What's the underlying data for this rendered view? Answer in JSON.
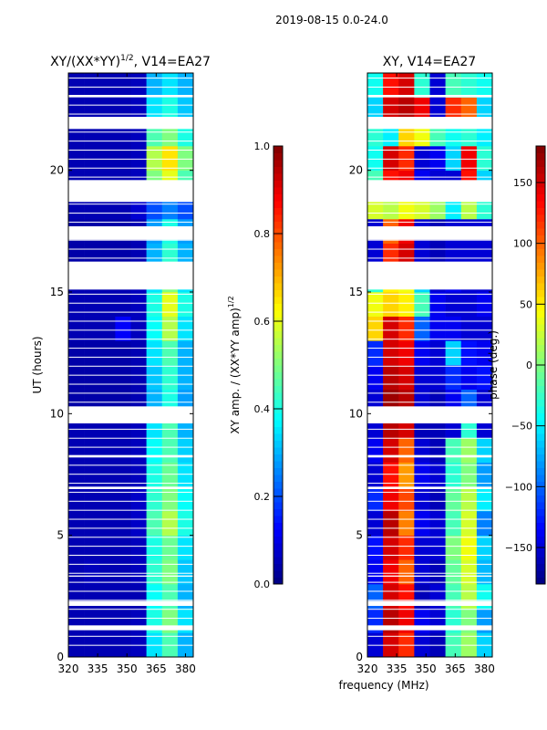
{
  "suptitle": "2019-08-15 0.0-24.0",
  "xlabel": "frequency (MHz)",
  "chart_data": [
    {
      "type": "heatmap",
      "title": "XY/(XX*YY)",
      "title_sup": "1/2",
      "title_suffix": ", V14=EA27",
      "ylabel": "UT (hours)",
      "xlim": [
        320,
        384
      ],
      "ylim": [
        0,
        24
      ],
      "xticks": [
        320,
        335,
        350,
        365,
        380
      ],
      "yticks": [
        0,
        5,
        10,
        15,
        20
      ],
      "freq_bins": [
        320,
        328,
        336,
        344,
        352,
        360,
        368,
        376,
        384
      ],
      "gaps_hours": [
        [
          1.1,
          1.3
        ],
        [
          2.1,
          2.3
        ],
        [
          3.3,
          3.35
        ],
        [
          6.9,
          7.0
        ],
        [
          8.2,
          8.3
        ],
        [
          9.6,
          10.3
        ],
        [
          15.1,
          16.25
        ],
        [
          17.15,
          17.7
        ],
        [
          18.7,
          19.6
        ],
        [
          21.7,
          22.2
        ],
        [
          23.0,
          23.1
        ]
      ],
      "values": [
        [
          0.05,
          0.05,
          0.05,
          0.05,
          0.06,
          0.35,
          0.45,
          0.3
        ],
        [
          0.05,
          0.05,
          0.05,
          0.05,
          0.06,
          0.4,
          0.5,
          0.35
        ],
        [
          0.05,
          0.05,
          0.05,
          0.05,
          0.05,
          0.38,
          0.45,
          0.3
        ],
        [
          0.05,
          0.06,
          0.05,
          0.05,
          0.06,
          0.42,
          0.5,
          0.32
        ],
        [
          0.05,
          0.05,
          0.05,
          0.05,
          0.06,
          0.4,
          0.48,
          0.35
        ],
        [
          0.05,
          0.05,
          0.05,
          0.05,
          0.07,
          0.45,
          0.55,
          0.4
        ],
        [
          0.05,
          0.05,
          0.05,
          0.05,
          0.07,
          0.42,
          0.5,
          0.38
        ],
        [
          0.05,
          0.05,
          0.05,
          0.05,
          0.06,
          0.4,
          0.48,
          0.35
        ],
        [
          0.05,
          0.05,
          0.05,
          0.05,
          0.06,
          0.38,
          0.45,
          0.33
        ],
        [
          0.05,
          0.05,
          0.05,
          0.05,
          0.06,
          0.35,
          0.45,
          0.3
        ],
        [
          0.04,
          0.04,
          0.04,
          0.04,
          0.05,
          0.3,
          0.4,
          0.28
        ],
        [
          0.04,
          0.04,
          0.04,
          0.04,
          0.05,
          0.32,
          0.42,
          0.3
        ],
        [
          0.04,
          0.04,
          0.04,
          0.04,
          0.05,
          0.35,
          0.45,
          0.3
        ],
        [
          0.05,
          0.05,
          0.05,
          0.12,
          0.06,
          0.38,
          0.55,
          0.35
        ],
        [
          0.05,
          0.05,
          0.05,
          0.05,
          0.06,
          0.4,
          0.6,
          0.4
        ],
        [
          0.05,
          0.05,
          0.05,
          0.05,
          0.06,
          0.35,
          0.5,
          0.35
        ],
        [
          0.04,
          0.04,
          0.04,
          0.04,
          0.05,
          0.3,
          0.42,
          0.3
        ],
        [
          0.04,
          0.04,
          0.04,
          0.04,
          0.05,
          0.28,
          0.4,
          0.28
        ],
        [
          0.05,
          0.05,
          0.05,
          0.05,
          0.08,
          0.2,
          0.25,
          0.2
        ],
        [
          0.05,
          0.05,
          0.05,
          0.05,
          0.06,
          0.5,
          0.6,
          0.45
        ],
        [
          0.05,
          0.05,
          0.05,
          0.05,
          0.06,
          0.55,
          0.65,
          0.5
        ],
        [
          0.05,
          0.05,
          0.05,
          0.05,
          0.06,
          0.45,
          0.5,
          0.4
        ],
        [
          0.05,
          0.05,
          0.05,
          0.05,
          0.06,
          0.35,
          0.4,
          0.32
        ],
        [
          0.05,
          0.05,
          0.05,
          0.05,
          0.06,
          0.3,
          0.35,
          0.3
        ]
      ],
      "colorbar": {
        "label": "XY amp. / (XX*YY amp)",
        "label_sup": "1/2",
        "range": [
          0,
          1
        ],
        "ticks": [
          "0.0",
          "0.2",
          "0.4",
          "0.6",
          "0.8",
          "1.0"
        ]
      }
    },
    {
      "type": "heatmap",
      "title": "XY, V14=EA27",
      "xlim": [
        320,
        384
      ],
      "ylim": [
        0,
        24
      ],
      "xticks": [
        320,
        335,
        350,
        365,
        380
      ],
      "yticks": [
        0,
        5,
        10,
        15,
        20
      ],
      "freq_bins": [
        320,
        328,
        336,
        344,
        352,
        360,
        368,
        376,
        384
      ],
      "gaps_hours": [
        [
          1.1,
          1.3
        ],
        [
          2.1,
          2.3
        ],
        [
          3.3,
          3.35
        ],
        [
          6.9,
          7.0
        ],
        [
          8.2,
          8.3
        ],
        [
          9.6,
          10.3
        ],
        [
          15.1,
          16.25
        ],
        [
          17.15,
          17.7
        ],
        [
          18.7,
          19.6
        ],
        [
          21.7,
          22.2
        ],
        [
          23.0,
          23.1
        ]
      ],
      "values": [
        [
          -150,
          150,
          120,
          -150,
          -160,
          -20,
          10,
          -60
        ],
        [
          -120,
          160,
          140,
          -140,
          -150,
          -30,
          0,
          -80
        ],
        [
          -100,
          150,
          130,
          -160,
          -150,
          -20,
          20,
          -40
        ],
        [
          -140,
          140,
          100,
          -150,
          -160,
          -10,
          30,
          -70
        ],
        [
          -130,
          150,
          120,
          -150,
          -150,
          0,
          40,
          -60
        ],
        [
          -150,
          160,
          90,
          -140,
          -150,
          -20,
          30,
          -90
        ],
        [
          -120,
          140,
          110,
          -150,
          -160,
          -10,
          20,
          -50
        ],
        [
          -150,
          130,
          80,
          -140,
          -150,
          -30,
          0,
          -80
        ],
        [
          -140,
          150,
          100,
          -150,
          -160,
          -20,
          10,
          -60
        ],
        [
          -150,
          160,
          150,
          -160,
          -160,
          -150,
          -30,
          -150
        ],
        [
          -150,
          170,
          160,
          -150,
          -160,
          -140,
          -100,
          -150
        ],
        [
          -140,
          160,
          150,
          -150,
          -150,
          -120,
          -140,
          -130
        ],
        [
          -120,
          150,
          140,
          -140,
          -150,
          -60,
          -130,
          -140
        ],
        [
          60,
          150,
          120,
          -100,
          -140,
          -140,
          -150,
          -150
        ],
        [
          40,
          60,
          50,
          -20,
          -140,
          -150,
          -150,
          -140
        ],
        [
          -30,
          50,
          40,
          -60,
          -150,
          -140,
          -150,
          -150
        ],
        [
          -150,
          120,
          150,
          -150,
          -160,
          -150,
          -150,
          -150
        ],
        [
          -150,
          100,
          140,
          -150,
          -160,
          -150,
          -150,
          -150
        ],
        [
          30,
          20,
          40,
          30,
          10,
          -50,
          20,
          -30
        ],
        [
          -20,
          130,
          140,
          -140,
          -150,
          -150,
          130,
          -60
        ],
        [
          -40,
          150,
          120,
          -150,
          -140,
          -60,
          140,
          -30
        ],
        [
          -30,
          -50,
          60,
          40,
          -20,
          -40,
          -30,
          -50
        ],
        [
          -60,
          150,
          160,
          140,
          -150,
          120,
          100,
          -60
        ],
        [
          -40,
          130,
          150,
          -30,
          -150,
          -20,
          -30,
          -40
        ]
      ],
      "colorbar": {
        "label": "phase (deg.)",
        "range": [
          -180,
          180
        ],
        "ticks": [
          "−150",
          "−100",
          "−50",
          "0",
          "50",
          "100",
          "150"
        ],
        "tick_values": [
          -150,
          -100,
          -50,
          0,
          50,
          100,
          150
        ]
      }
    }
  ]
}
